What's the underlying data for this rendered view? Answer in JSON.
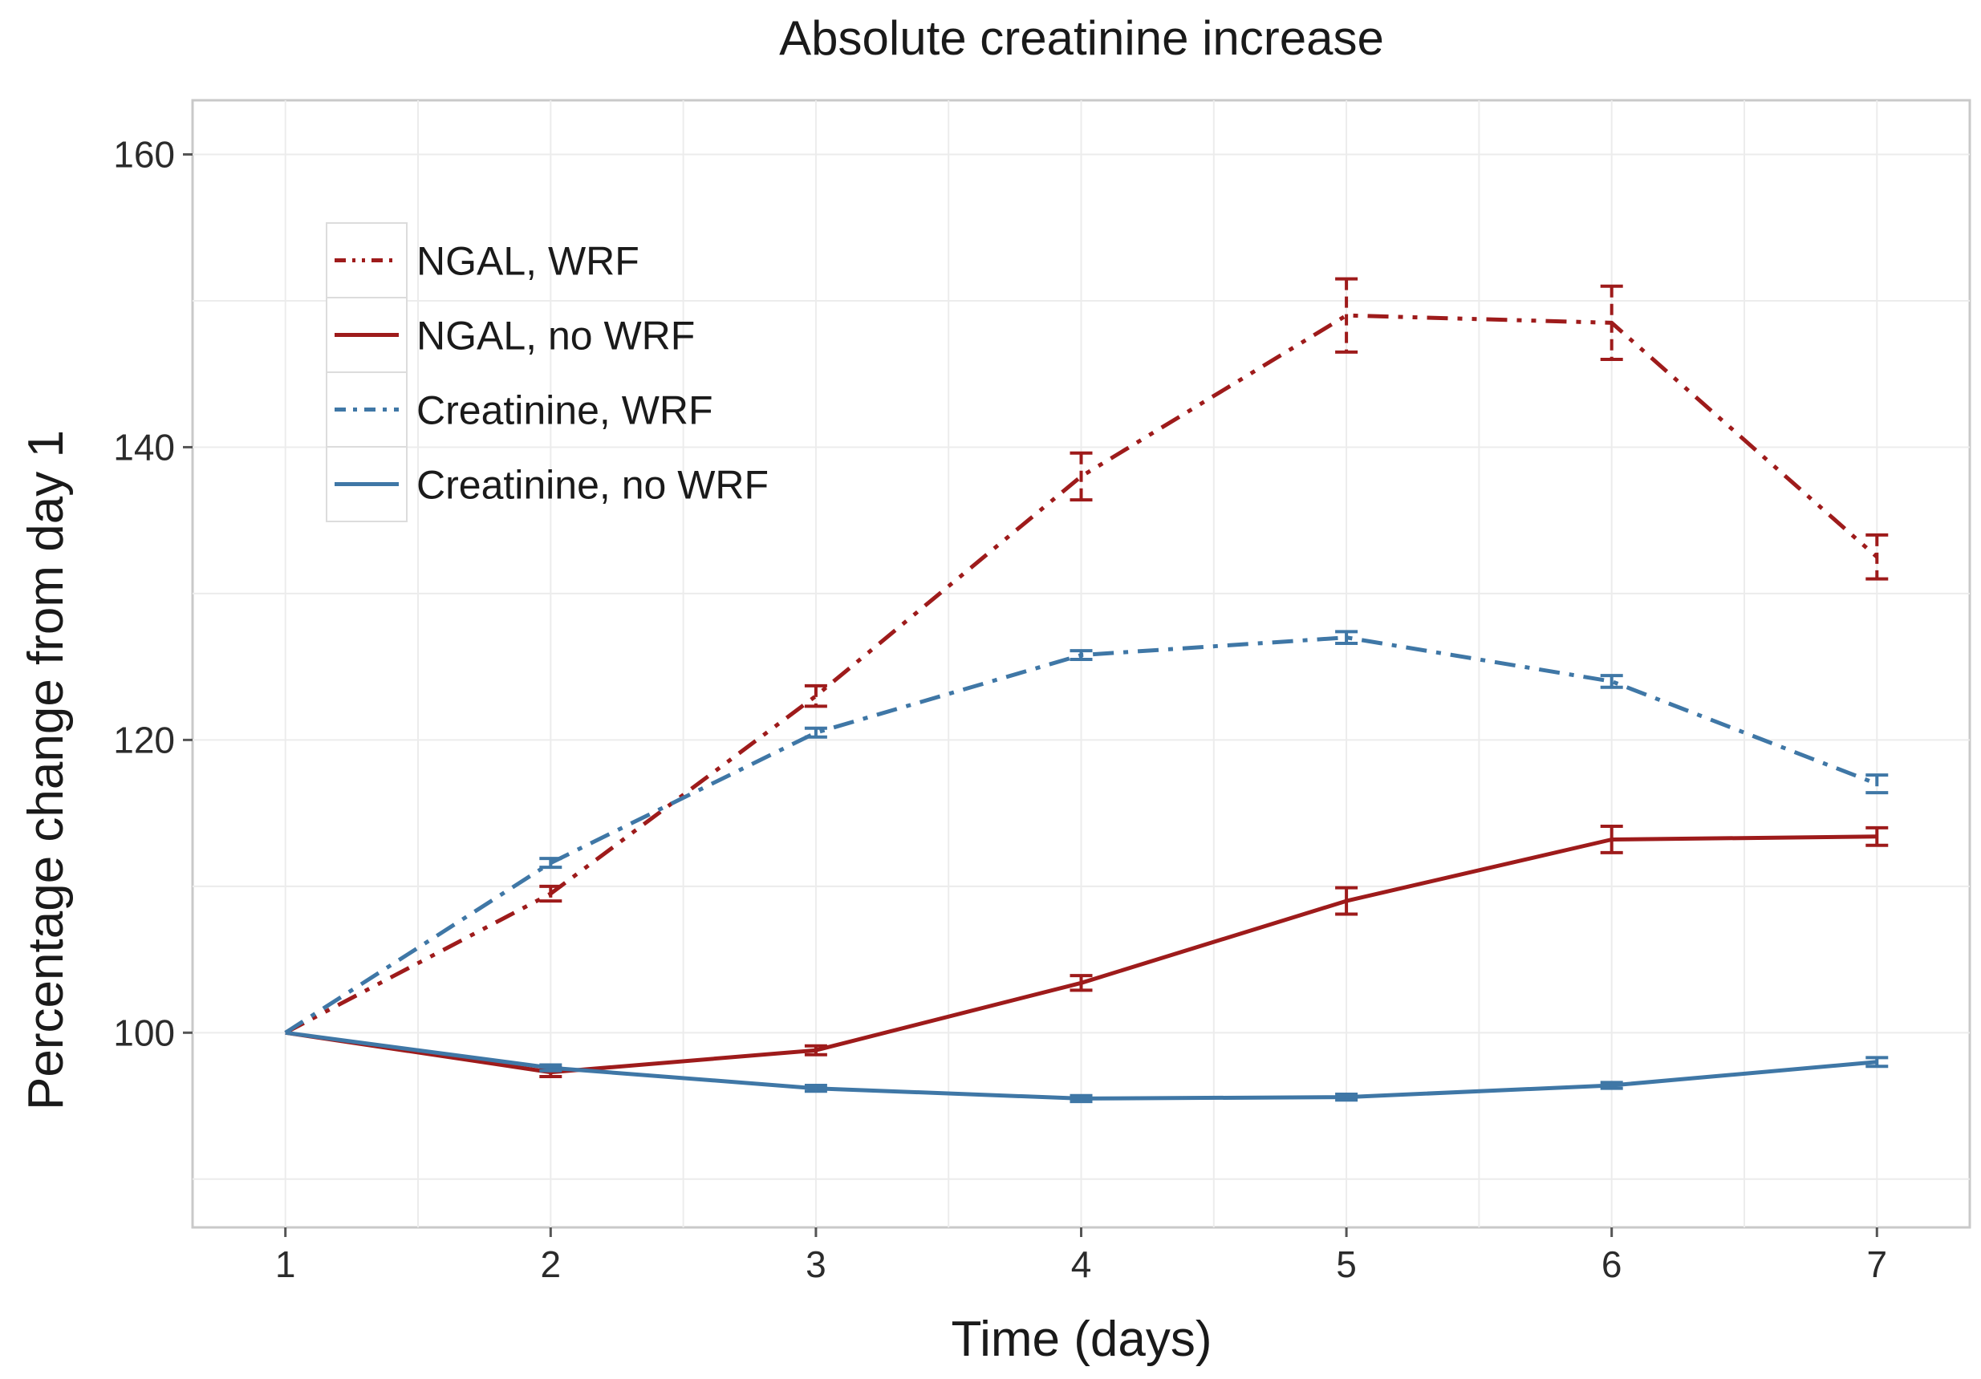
{
  "chart_data": {
    "type": "line",
    "title": "Absolute creatinine increase",
    "xlabel": "Time (days)",
    "ylabel": "Percentage change from day 1",
    "x": [
      1,
      2,
      3,
      4,
      5,
      6,
      7
    ],
    "xticks": [
      "1",
      "2",
      "3",
      "4",
      "5",
      "6",
      "7"
    ],
    "yticks": [
      100,
      120,
      140,
      160
    ],
    "xlim": [
      0.65,
      7.35
    ],
    "ylim": [
      86.7,
      163.7
    ],
    "grid": true,
    "legend_position": "top-left",
    "series": [
      {
        "name": "NGAL, WRF",
        "color": "#9e1b1b",
        "style": "dashdot-dot",
        "values": [
          100,
          109.5,
          123,
          138,
          149,
          148.5,
          132.5
        ],
        "errors": [
          0,
          0.5,
          0.7,
          1.6,
          2.5,
          2.5,
          1.5
        ]
      },
      {
        "name": "NGAL, no WRF",
        "color": "#9e1b1b",
        "style": "solid",
        "values": [
          100,
          97.3,
          98.8,
          103.4,
          109,
          113.2,
          113.4
        ],
        "errors": [
          0,
          0.3,
          0.3,
          0.5,
          0.9,
          0.9,
          0.6
        ]
      },
      {
        "name": "Creatinine, WRF",
        "color": "#3f77a6",
        "style": "dashdot",
        "values": [
          100,
          111.6,
          120.5,
          125.8,
          127,
          124,
          117
        ],
        "errors": [
          0,
          0.3,
          0.3,
          0.3,
          0.4,
          0.4,
          0.6
        ]
      },
      {
        "name": "Creatinine, no WRF",
        "color": "#3f77a6",
        "style": "solid",
        "values": [
          100,
          97.6,
          96.2,
          95.5,
          95.6,
          96.4,
          98
        ],
        "errors": [
          0,
          0.2,
          0.2,
          0.2,
          0.2,
          0.2,
          0.3
        ]
      }
    ]
  }
}
